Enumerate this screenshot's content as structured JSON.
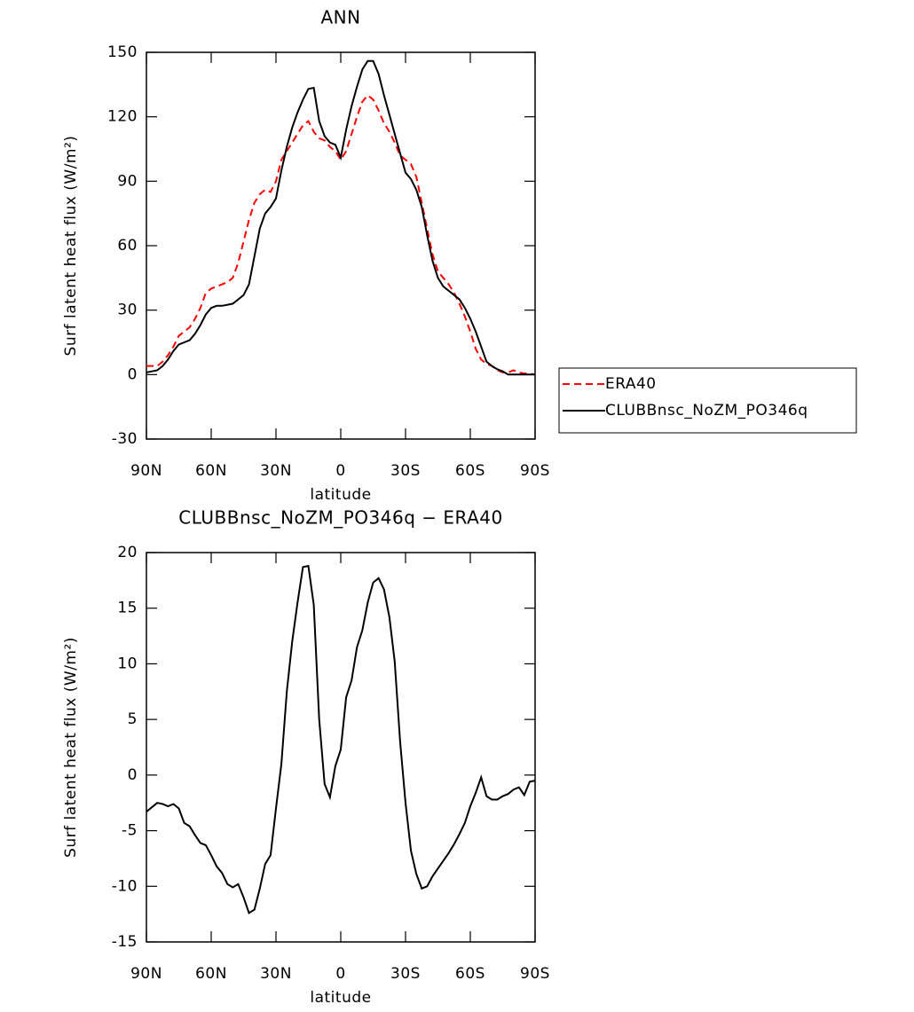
{
  "chart_data": [
    {
      "type": "line",
      "title": "ANN",
      "xlabel": "latitude",
      "ylabel": "Surf latent heat flux (W/m²)",
      "xlim": [
        90,
        -90
      ],
      "xticks": [
        {
          "value": 90,
          "label": "90N"
        },
        {
          "value": 60,
          "label": "60N"
        },
        {
          "value": 30,
          "label": "30N"
        },
        0,
        {
          "value": -30,
          "label": "30S"
        },
        {
          "value": -60,
          "label": "60S"
        },
        {
          "value": -90,
          "label": "90S"
        }
      ],
      "ylim": [
        -30,
        150
      ],
      "yticks": [
        -30,
        0,
        30,
        60,
        90,
        120,
        150
      ],
      "legend": "right",
      "x": [
        90,
        87.5,
        85,
        82.5,
        80,
        77.5,
        75,
        72.5,
        70,
        67.5,
        65,
        62.5,
        60,
        57.5,
        55,
        52.5,
        50,
        47.5,
        45,
        42.5,
        40,
        37.5,
        35,
        32.5,
        30,
        27.5,
        25,
        22.5,
        20,
        17.5,
        15,
        12.5,
        10,
        7.5,
        5,
        2.5,
        0,
        -2.5,
        -5,
        -7.5,
        -10,
        -12.5,
        -15,
        -17.5,
        -20,
        -22.5,
        -25,
        -27.5,
        -30,
        -32.5,
        -35,
        -37.5,
        -40,
        -42.5,
        -45,
        -47.5,
        -50,
        -52.5,
        -55,
        -57.5,
        -60,
        -62.5,
        -65,
        -67.5,
        -70,
        -72.5,
        -75,
        -77.5,
        -80,
        -82.5,
        -85,
        -87.5,
        -90
      ],
      "series": [
        {
          "name": "ERA40",
          "color": "#ff0000",
          "dashed": true,
          "values": [
            4,
            4,
            4,
            6,
            9,
            13,
            18,
            20,
            22,
            26,
            31,
            38,
            40,
            41,
            42,
            43,
            45,
            52,
            62,
            72,
            80,
            84,
            86,
            85,
            90,
            100,
            104,
            108,
            112,
            116,
            118,
            113,
            110,
            109,
            106,
            104,
            100,
            104,
            112,
            120,
            127,
            130,
            128,
            123,
            117,
            113,
            108,
            102,
            100,
            98,
            92,
            80,
            68,
            56,
            48,
            45,
            42,
            38,
            33,
            27,
            20,
            12,
            7,
            5,
            4,
            2,
            1,
            1,
            2,
            1,
            0.5,
            0.5,
            0
          ]
        },
        {
          "name": "CLUBBnsc_NoZM_PO346q",
          "color": "#000000",
          "dashed": false,
          "values": [
            1,
            1.5,
            2,
            4,
            7,
            11,
            14,
            15,
            16,
            19,
            23,
            28,
            31,
            32,
            32,
            32.5,
            33,
            35,
            37,
            42,
            55,
            68,
            75,
            78,
            82,
            95,
            106,
            115,
            122,
            128,
            133,
            133.5,
            118,
            111,
            108,
            107,
            101,
            114,
            125,
            134,
            142,
            146,
            146,
            140,
            130,
            121,
            112,
            103,
            94,
            91,
            86,
            78,
            65,
            53,
            45,
            41,
            39,
            37,
            35,
            31,
            26,
            20,
            13,
            6,
            4,
            2.5,
            1.5,
            0,
            0,
            0,
            0,
            0,
            0
          ]
        }
      ]
    },
    {
      "type": "line",
      "title": "CLUBBnsc_NoZM_PO346q − ERA40",
      "xlabel": "latitude",
      "ylabel": "Surf latent heat flux (W/m²)",
      "xlim": [
        90,
        -90
      ],
      "xticks": [
        {
          "value": 90,
          "label": "90N"
        },
        {
          "value": 60,
          "label": "60N"
        },
        {
          "value": 30,
          "label": "30N"
        },
        0,
        {
          "value": -30,
          "label": "30S"
        },
        {
          "value": -60,
          "label": "60S"
        },
        {
          "value": -90,
          "label": "90S"
        }
      ],
      "ylim": [
        -15,
        20
      ],
      "yticks": [
        -15,
        -10,
        -5,
        0,
        5,
        10,
        15,
        20
      ],
      "color": "#000000",
      "x": [
        90,
        87.5,
        85,
        82.5,
        80,
        77.5,
        75,
        72.5,
        70,
        67.5,
        65,
        62.5,
        60,
        57.5,
        55,
        52.5,
        50,
        47.5,
        45,
        42.5,
        40,
        37.5,
        35,
        32.5,
        30,
        27.5,
        25,
        22.5,
        20,
        17.5,
        15,
        12.5,
        10,
        7.5,
        5,
        2.5,
        0,
        -2.5,
        -5,
        -7.5,
        -10,
        -12.5,
        -15,
        -17.5,
        -20,
        -22.5,
        -25,
        -27.5,
        -30,
        -32.5,
        -35,
        -37.5,
        -40,
        -42.5,
        -45,
        -47.5,
        -50,
        -52.5,
        -55,
        -57.5,
        -60,
        -62.5,
        -65,
        -67.5,
        -70,
        -72.5,
        -75,
        -77.5,
        -80,
        -82.5,
        -85,
        -87.5,
        -90
      ],
      "values": [
        -3.3,
        -2.9,
        -2.5,
        -2.6,
        -2.8,
        -2.6,
        -3.0,
        -4.3,
        -4.6,
        -5.4,
        -6.1,
        -6.3,
        -7.2,
        -8.2,
        -8.8,
        -9.8,
        -10.1,
        -9.8,
        -11.0,
        -12.4,
        -12.1,
        -10.2,
        -8.0,
        -7.2,
        -3.0,
        1.0,
        7.5,
        12.0,
        15.5,
        18.7,
        18.8,
        15.3,
        5.0,
        -0.8,
        -2.0,
        0.8,
        2.3,
        7.0,
        8.5,
        11.5,
        13.0,
        15.5,
        17.3,
        17.7,
        16.7,
        14.2,
        10.2,
        3.0,
        -2.5,
        -6.8,
        -8.9,
        -10.2,
        -10.0,
        -9.1,
        -8.4,
        -7.7,
        -7.0,
        -6.2,
        -5.3,
        -4.3,
        -2.8,
        -1.6,
        -0.2,
        -1.9,
        -2.2,
        -2.2,
        -1.9,
        -1.7,
        -1.3,
        -1.1,
        -1.8,
        -0.6,
        -0.5
      ]
    }
  ]
}
